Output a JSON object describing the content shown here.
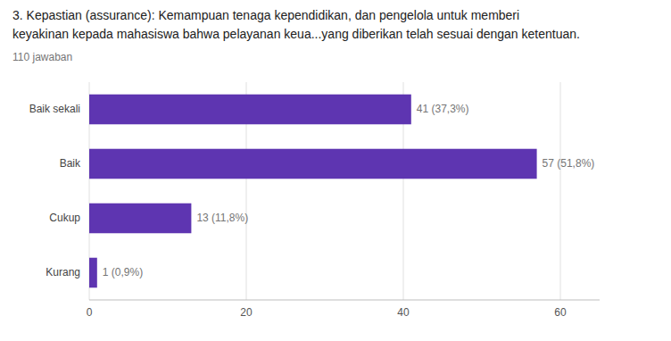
{
  "chart_data": {
    "type": "bar",
    "orientation": "horizontal",
    "title": [
      "3. Kepastian (assurance):  Kemampuan tenaga kependidikan, dan pengelola untuk memberi",
      "keyakinan kepada mahasiswa bahwa pelayanan keua...yang diberikan telah sesuai dengan ketentuan."
    ],
    "subtitle": "110 jawaban",
    "categories": [
      "Kurang",
      "Cukup",
      "Baik",
      "Baik sekali"
    ],
    "values": [
      1,
      13,
      57,
      41
    ],
    "value_labels": [
      "1 (0,9%)",
      "13 (11,8%)",
      "57 (51,8%)",
      "41 (37,3%)"
    ],
    "data_labels": true,
    "color": "#5e35b1",
    "xlim": [
      0,
      65
    ],
    "xticks": [
      0,
      20,
      40,
      60
    ],
    "grid": true
  }
}
